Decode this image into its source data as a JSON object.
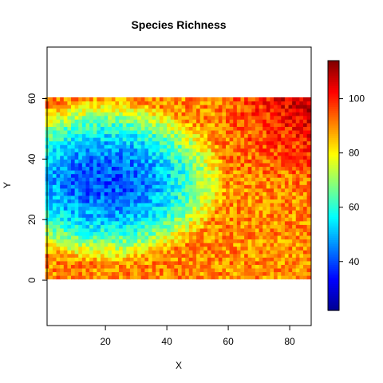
{
  "chart_data": {
    "type": "heatmap",
    "title": "Species Richness",
    "xlabel": "X",
    "ylabel": "Y",
    "xlim": [
      1,
      87
    ],
    "ylim": [
      -15,
      77
    ],
    "x_ticks": [
      20,
      40,
      60,
      80
    ],
    "y_ticks": [
      0,
      20,
      40,
      60
    ],
    "grid_x_range": [
      1,
      87
    ],
    "grid_y_range": [
      1,
      61
    ],
    "grid": false,
    "colorbar": {
      "range": [
        22,
        114
      ],
      "ticks": [
        40,
        60,
        80,
        100
      ],
      "palette": [
        "#00008F",
        "#0000FF",
        "#0080FF",
        "#00FFFF",
        "#80FF80",
        "#FFFF00",
        "#FF8000",
        "#FF0000",
        "#800000"
      ]
    },
    "richness_field": {
      "description_of_pattern": "low richness minimum near x=20,y=33; high toward right edge and left-bottom edge",
      "min_center": [
        20,
        33
      ],
      "min_value": 40,
      "edge_high_value": 90,
      "top_right_value": 100
    }
  }
}
